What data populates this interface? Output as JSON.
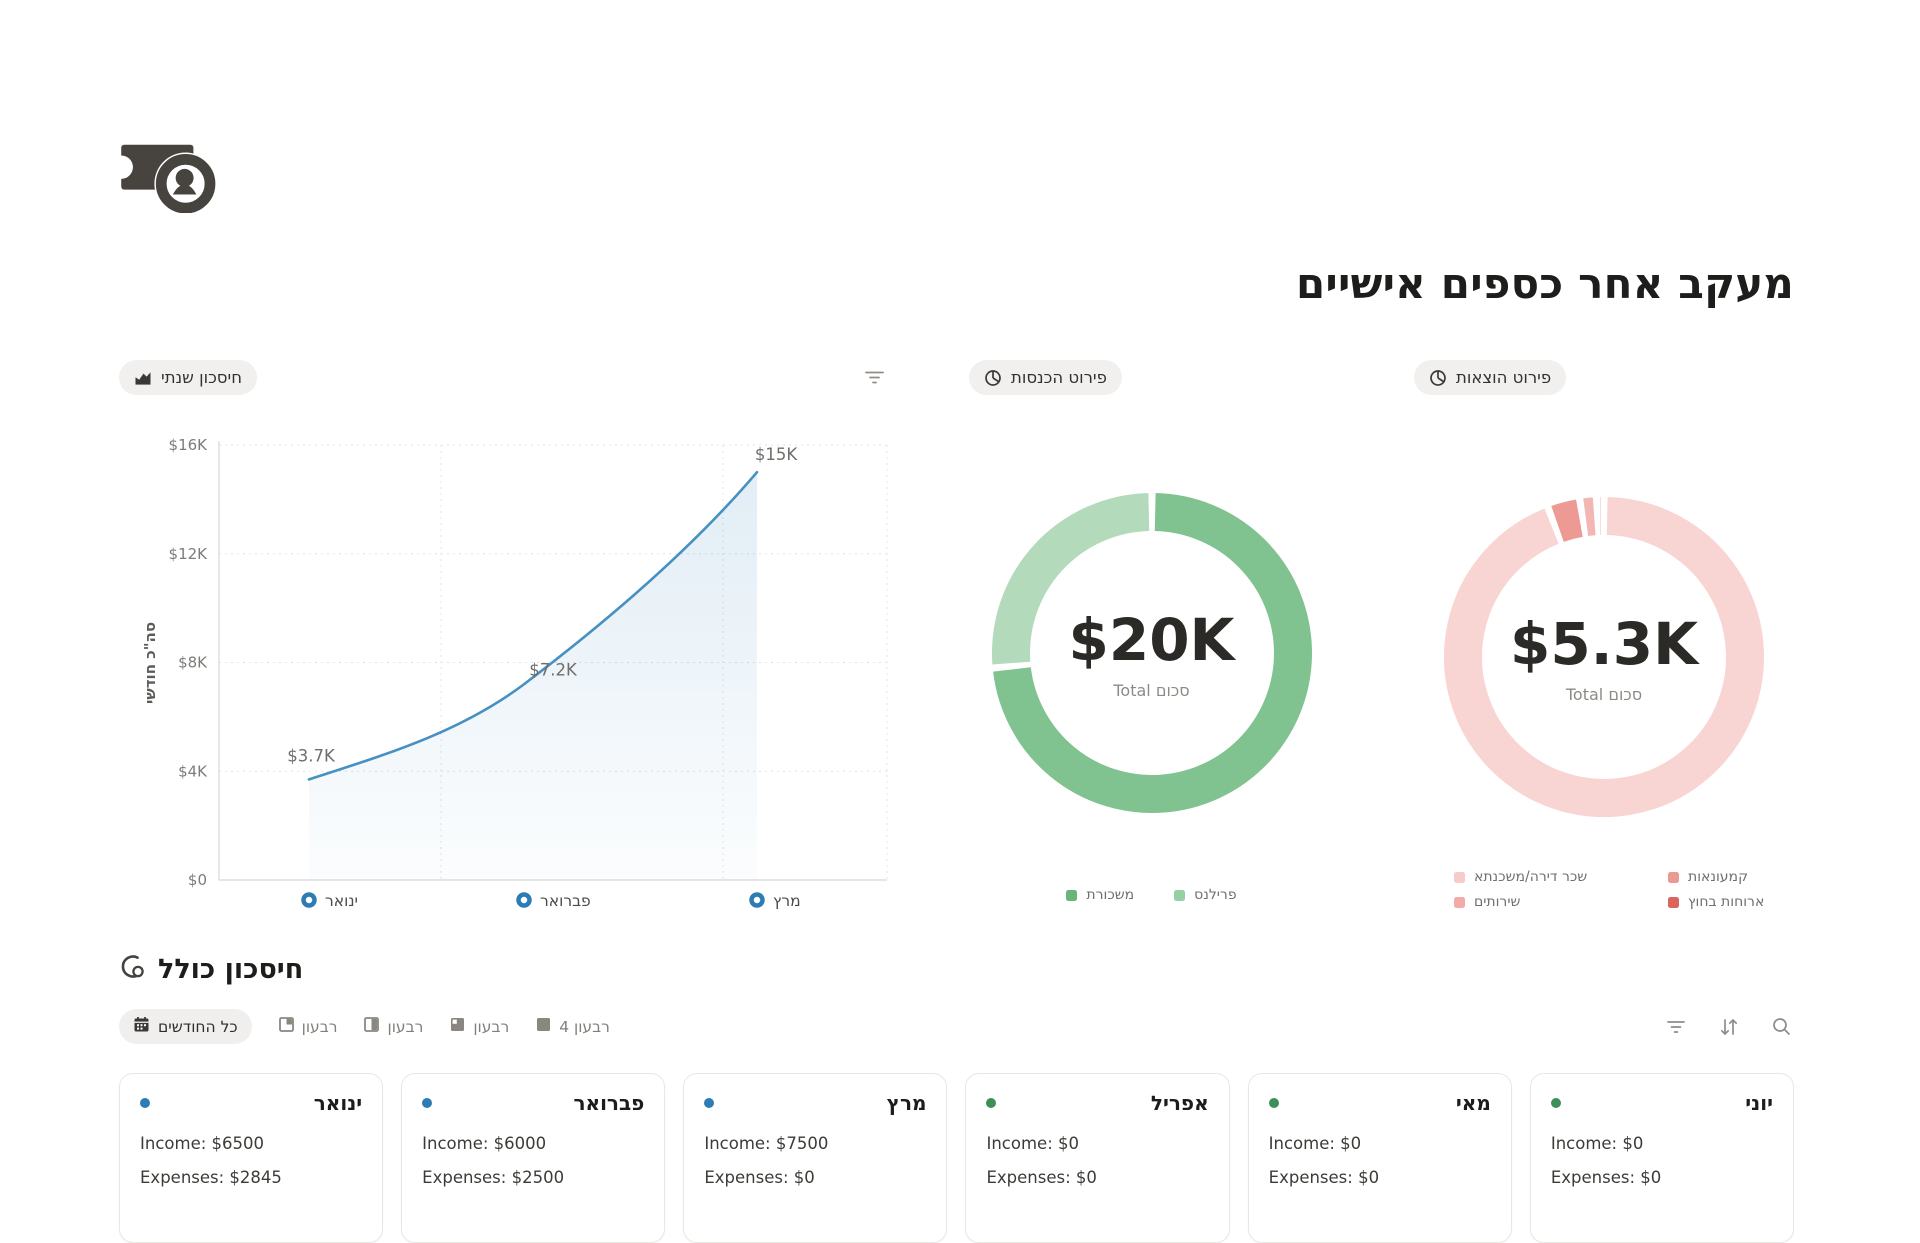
{
  "page": {
    "title": "מעקב אחר כספים אישיים"
  },
  "panels": {
    "savings": {
      "header": "חיסכון שנתי",
      "icon": "area-chart-icon"
    },
    "income": {
      "header": "פירוט הכנסות",
      "icon": "pie-chart-icon"
    },
    "expenses": {
      "header": "פירוט הוצאות",
      "icon": "pie-chart-icon"
    }
  },
  "chart_data": [
    {
      "id": "annual-savings",
      "type": "line",
      "title": "חיסכון שנתי",
      "x": [
        "ינואר",
        "פברואר",
        "מרץ"
      ],
      "values": [
        3700,
        7200,
        15000
      ],
      "point_labels": [
        "$3.7K",
        "$7.2K",
        "$15K"
      ],
      "ylabel": "סה\"כ חודשי",
      "yticks": [
        "$0",
        "$4K",
        "$8K",
        "$12K",
        "$16K"
      ],
      "ylim": [
        0,
        16000
      ],
      "line_color": "#4690c2",
      "grid": true,
      "legend_position": "none"
    },
    {
      "id": "income-breakdown",
      "type": "pie",
      "title": "פירוט הכנסות",
      "center_value": "$20K",
      "center_label": "סכום Total",
      "total": 20000,
      "segments": [
        {
          "label": "משכורת",
          "value": 14700,
          "color": "#80c391",
          "legend_color": "#68b47a"
        },
        {
          "label": "פרילנס",
          "value": 5300,
          "color": "#b2dabb",
          "legend_color": "#96cfa4"
        }
      ],
      "legend_position": "bottom"
    },
    {
      "id": "expenses-breakdown",
      "type": "pie",
      "title": "פירוט הוצאות",
      "center_value": "$5.3K",
      "center_label": "סכום Total",
      "total": 5345,
      "segments": [
        {
          "label": "שכר דירה/משכנתא",
          "value": 5040,
          "color": "#f8d4d3",
          "legend_color": "#f6cbc9"
        },
        {
          "label": "קמעונאות",
          "value": 175,
          "color": "#ec9a93",
          "legend_color": "#eb9a93"
        },
        {
          "label": "שירותים",
          "value": 90,
          "color": "#f3b7b3",
          "legend_color": "#f2aba6"
        },
        {
          "label": "ארוחות בחוץ",
          "value": 40,
          "color": "#db675e",
          "legend_color": "#d9655c"
        }
      ],
      "legend_position": "bottom"
    }
  ],
  "savings_section": {
    "heading": "חיסכון כולל",
    "heading_icon": "coins-icon",
    "tabs": [
      {
        "label": "כל החודשים",
        "icon": "calendar-icon",
        "selected": true
      },
      {
        "label": "רבעון",
        "icon": "quarter-1-icon",
        "selected": false
      },
      {
        "label": "רבעון",
        "icon": "quarter-2-icon",
        "selected": false
      },
      {
        "label": "רבעון",
        "icon": "quarter-3-icon",
        "selected": false
      },
      {
        "label": "רבעון 4",
        "icon": "quarter-4-icon",
        "selected": false
      }
    ],
    "toolbar_icons": [
      "filter-icon",
      "sort-icon",
      "search-icon"
    ],
    "cards": [
      {
        "month": "ינואר",
        "income": "Income: $6500",
        "expenses": "Expenses: $2845",
        "dot_color": "#2d7cb5"
      },
      {
        "month": "פברואר",
        "income": "Income: $6000",
        "expenses": "Expenses: $2500",
        "dot_color": "#2d7cb5"
      },
      {
        "month": "מרץ",
        "income": "Income: $7500",
        "expenses": "Expenses: $0",
        "dot_color": "#2d7cb5"
      },
      {
        "month": "אפריל",
        "income": "Income: $0",
        "expenses": "Expenses: $0",
        "dot_color": "#3d8e59"
      },
      {
        "month": "מאי",
        "income": "Income: $0",
        "expenses": "Expenses: $0",
        "dot_color": "#3d8e59"
      },
      {
        "month": "יוני",
        "income": "Income: $0",
        "expenses": "Expenses: $0",
        "dot_color": "#3d8e59"
      }
    ]
  }
}
